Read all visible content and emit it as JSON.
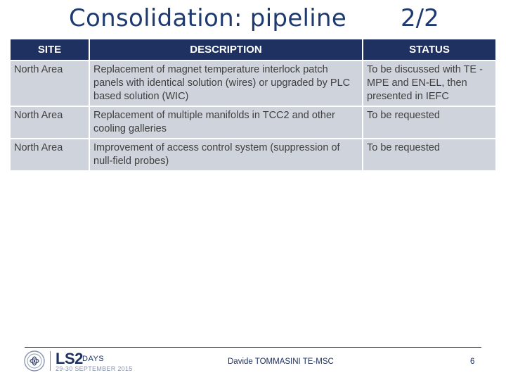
{
  "slide": {
    "title": "Consolidation: pipeline",
    "page_indicator": "2/2"
  },
  "table": {
    "headers": [
      "SITE",
      "DESCRIPTION",
      "STATUS"
    ],
    "rows": [
      {
        "site": "North Area",
        "description": "Replacement of magnet temperature interlock patch panels with identical solution (wires) or upgraded by PLC based solution (WIC)",
        "status": "To be discussed with TE -MPE and EN-EL, then presented in IEFC"
      },
      {
        "site": "North Area",
        "description": "Replacement of multiple manifolds in TCC2 and other cooling galleries",
        "status": "To be requested"
      },
      {
        "site": "North Area",
        "description": "Improvement of access control system (suppression of null-field probes)",
        "status": "To be requested"
      }
    ]
  },
  "footer": {
    "logo": {
      "title": "LS2",
      "subtitle": "DAYS",
      "date": "29-30 SEPTEMBER 2015"
    },
    "author": "Davide TOMMASINI TE-MSC",
    "page_number": "6"
  },
  "colors": {
    "title": "#1f3a6e",
    "header_bg": "#1e3160",
    "row_bg": "#cfd3dc",
    "text": "#404040"
  }
}
